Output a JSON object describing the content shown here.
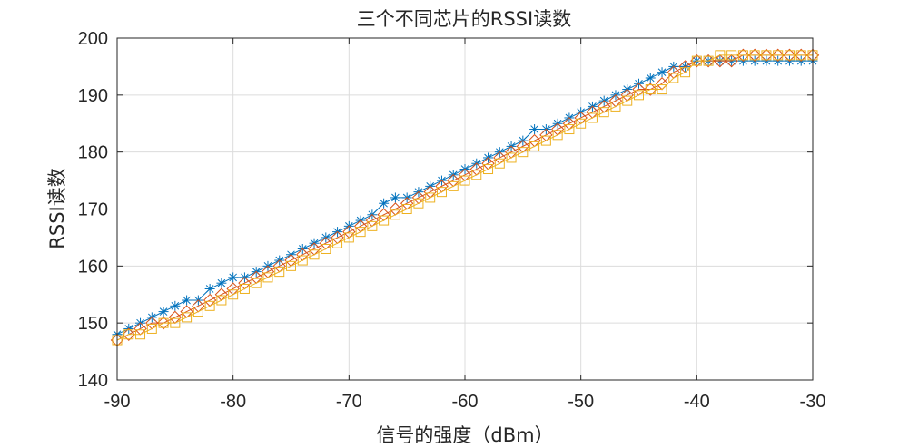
{
  "chart_data": {
    "type": "line",
    "title": "三个不同芯片的RSSI读数",
    "xlabel": "信号的强度（dBm）",
    "ylabel": "RSSI读数",
    "xlim": [
      -90,
      -30
    ],
    "ylim": [
      140,
      200
    ],
    "xticks": [
      "-90",
      "-80",
      "-70",
      "-60",
      "-50",
      "-40",
      "-30"
    ],
    "yticks": [
      "140",
      "150",
      "160",
      "170",
      "180",
      "190",
      "200"
    ],
    "grid": true,
    "x": [
      -90,
      -89,
      -88,
      -87,
      -86,
      -85,
      -84,
      -83,
      -82,
      -81,
      -80,
      -79,
      -78,
      -77,
      -76,
      -75,
      -74,
      -73,
      -72,
      -71,
      -70,
      -69,
      -68,
      -67,
      -66,
      -65,
      -64,
      -63,
      -62,
      -61,
      -60,
      -59,
      -58,
      -57,
      -56,
      -55,
      -54,
      -53,
      -52,
      -51,
      -50,
      -49,
      -48,
      -47,
      -46,
      -45,
      -44,
      -43,
      -42,
      -41,
      -40,
      -39,
      -38,
      -37,
      -36,
      -35,
      -34,
      -33,
      -32,
      -31,
      -30
    ],
    "series": [
      {
        "color": "#0072BD",
        "marker": "asterisk",
        "values": [
          148,
          149,
          150,
          151,
          152,
          153,
          154,
          154,
          156,
          157,
          158,
          158,
          159,
          160,
          161,
          162,
          163,
          164,
          165,
          166,
          167,
          168,
          169,
          171,
          172,
          172,
          173,
          174,
          175,
          176,
          177,
          178,
          179,
          180,
          181,
          182,
          184,
          184,
          185,
          186,
          187,
          188,
          189,
          190,
          191,
          192,
          193,
          194,
          195,
          195,
          196,
          196,
          196,
          196,
          196,
          196,
          196,
          196,
          196,
          196,
          196
        ]
      },
      {
        "color": "#D95319",
        "marker": "diamond",
        "values": [
          147,
          148,
          149,
          150,
          150,
          151,
          152,
          153,
          154,
          155,
          156,
          157,
          158,
          159,
          160,
          161,
          162,
          163,
          164,
          165,
          166,
          167,
          168,
          169,
          170,
          171,
          172,
          173,
          174,
          175,
          176,
          177,
          178,
          179,
          180,
          181,
          182,
          183,
          184,
          185,
          186,
          187,
          188,
          189,
          190,
          191,
          191,
          192,
          194,
          195,
          196,
          196,
          196,
          196,
          197,
          197,
          197,
          197,
          197,
          197,
          197
        ]
      },
      {
        "color": "#EDB120",
        "marker": "square",
        "values": [
          147,
          148,
          148,
          149,
          150,
          150,
          151,
          152,
          153,
          154,
          155,
          156,
          157,
          158,
          159,
          160,
          161,
          162,
          163,
          164,
          165,
          166,
          167,
          168,
          169,
          170,
          171,
          172,
          173,
          174,
          175,
          176,
          177,
          178,
          179,
          180,
          181,
          182,
          183,
          184,
          185,
          186,
          187,
          188,
          189,
          190,
          191,
          191,
          193,
          194,
          196,
          196,
          197,
          197,
          197,
          197,
          197,
          197,
          197,
          197,
          197
        ]
      }
    ]
  }
}
